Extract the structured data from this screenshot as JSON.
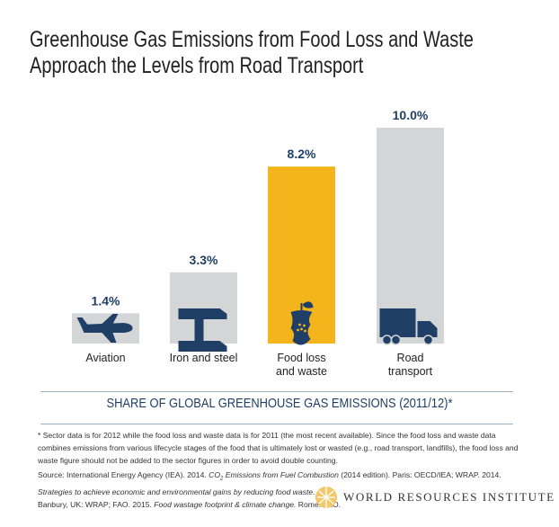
{
  "chart_data": {
    "type": "bar",
    "title": [
      "Greenhouse Gas Emissions from Food Loss and Waste",
      "Approach the Levels from Road Transport"
    ],
    "categories": [
      [
        "Aviation"
      ],
      [
        "Iron and steel"
      ],
      [
        "Food loss",
        "and waste"
      ],
      [
        "Road",
        "transport"
      ]
    ],
    "values": [
      1.4,
      3.3,
      8.2,
      10.0
    ],
    "value_labels": [
      "1.4%",
      "3.3%",
      "8.2%",
      "10.0%"
    ],
    "icons": [
      "airplane-icon",
      "steel-beam-icon",
      "apple-core-icon",
      "truck-icon"
    ],
    "bar_colors": [
      "#d4d5d7",
      "#d4d5d7",
      "#f4b51c",
      "#d4d5d7"
    ],
    "icon_color": "#1f3f66",
    "xlabel": "SHARE OF GLOBAL GREENHOUSE GAS EMISSIONS (2011/12)*",
    "ylim": [
      0,
      10
    ],
    "grid": false
  },
  "footnote": "* Sector data is for 2012 while the food loss and waste data is for 2011 (the most recent available). Since the food loss and waste data combines emissions from various lifecycle stages of the food that is ultimately lost or wasted (e.g., road transport, landfills), the food loss and waste figure should not be added to the sector figures in order to avoid double counting.",
  "source": {
    "l1a": "Source:  International Energy Agency (IEA). 2014. ",
    "l1b": "CO",
    "l1sub": "2",
    "l1c": " Emissions from Fuel Combustion",
    "l1d": " (2014 edition). Paris: OECD/IEA; WRAP. 2014.",
    "l2": "Strategies to achieve economic and environmental gains by reducing food waste.",
    "l3a": "Banbury, UK: WRAP; FAO. 2015. ",
    "l3b": "Food wastage footprint & climate change.",
    "l3c": " Rome: FAO."
  },
  "logo": "WORLD RESOURCES INSTITUTE"
}
